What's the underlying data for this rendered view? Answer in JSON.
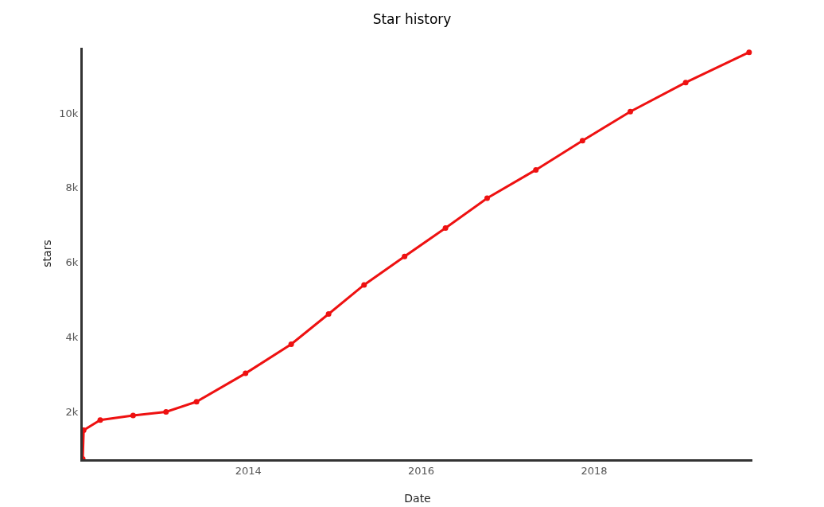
{
  "chart_data": {
    "type": "line",
    "title": "Star history",
    "xlabel": "Date",
    "ylabel": "stars",
    "x": [
      "2012-02-01",
      "2012-02-05",
      "2012-04-15",
      "2012-09-01",
      "2013-01-18",
      "2013-05-27",
      "2013-12-20",
      "2014-07-01",
      "2014-12-06",
      "2015-05-05",
      "2015-10-23",
      "2016-04-13",
      "2016-10-06",
      "2017-04-30",
      "2017-11-13",
      "2018-06-03",
      "2019-01-23",
      "2019-10-18"
    ],
    "series": [
      {
        "color": "#ee1111",
        "values": [
          740,
          1510,
          1780,
          1900,
          2000,
          2270,
          3030,
          3810,
          4620,
          5400,
          6160,
          6920,
          7720,
          8480,
          9260,
          10040,
          10820,
          11630
        ]
      }
    ],
    "xlim": [
      "2012-02-01",
      "2019-11-01"
    ],
    "xticks": [
      "2014",
      "2016",
      "2018"
    ],
    "ylim": [
      730,
      11750
    ],
    "yticks": [
      {
        "value": 2000,
        "label": "2k"
      },
      {
        "value": 4000,
        "label": "4k"
      },
      {
        "value": 6000,
        "label": "6k"
      },
      {
        "value": 8000,
        "label": "8k"
      },
      {
        "value": 10000,
        "label": "10k"
      }
    ],
    "grid": false,
    "marker": "circle",
    "line_style": "solid"
  }
}
